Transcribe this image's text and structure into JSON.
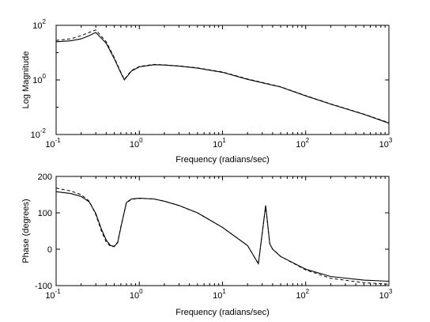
{
  "chart_data": [
    {
      "type": "line",
      "xscale": "log",
      "yscale": "log",
      "xlim": [
        0.1,
        1000
      ],
      "ylim": [
        0.01,
        100
      ],
      "xlabel": "Frequency (radians/sec)",
      "ylabel": "Log Magnitude",
      "grid": false,
      "x_ticks": [
        {
          "base": "10",
          "exp": "-1",
          "value": 0.1
        },
        {
          "base": "10",
          "exp": "0",
          "value": 1
        },
        {
          "base": "10",
          "exp": "1",
          "value": 10
        },
        {
          "base": "10",
          "exp": "2",
          "value": 100
        },
        {
          "base": "10",
          "exp": "3",
          "value": 1000
        }
      ],
      "y_ticks": [
        {
          "base": "10",
          "exp": "-2",
          "value": 0.01
        },
        {
          "base": "10",
          "exp": "0",
          "value": 1
        },
        {
          "base": "10",
          "exp": "2",
          "value": 100
        }
      ],
      "series": [
        {
          "style": "solid",
          "x": [
            0.1,
            0.15,
            0.2,
            0.25,
            0.3,
            0.4,
            0.5,
            0.6,
            0.66,
            0.8,
            1.0,
            1.5,
            2,
            3,
            5,
            10,
            20,
            50,
            100,
            200,
            500,
            1000
          ],
          "y": [
            25,
            27,
            32,
            42,
            55,
            22,
            6,
            1.8,
            1.0,
            2.1,
            3.0,
            3.6,
            3.5,
            3.2,
            2.7,
            1.9,
            1.05,
            0.55,
            0.26,
            0.13,
            0.055,
            0.026
          ]
        },
        {
          "style": "dashed",
          "x": [
            0.1,
            0.15,
            0.2,
            0.25,
            0.3,
            0.4,
            0.5,
            0.6,
            0.66,
            0.8,
            1.0,
            1.5,
            2,
            3,
            5,
            10,
            20,
            50,
            100,
            200,
            500,
            1000
          ],
          "y": [
            28,
            32,
            42,
            55,
            68,
            25,
            6.5,
            1.9,
            1.05,
            2.2,
            3.1,
            3.7,
            3.55,
            3.25,
            2.75,
            1.95,
            1.08,
            0.56,
            0.265,
            0.132,
            0.056,
            0.027
          ]
        }
      ]
    },
    {
      "type": "line",
      "xscale": "log",
      "xlim": [
        0.1,
        1000
      ],
      "ylim": [
        -100,
        200
      ],
      "xlabel": "Frequency (radians/sec)",
      "ylabel": "Phase (degrees)",
      "grid": false,
      "x_ticks": [
        {
          "base": "10",
          "exp": "-1",
          "value": 0.1
        },
        {
          "base": "10",
          "exp": "0",
          "value": 1
        },
        {
          "base": "10",
          "exp": "1",
          "value": 10
        },
        {
          "base": "10",
          "exp": "2",
          "value": 100
        },
        {
          "base": "10",
          "exp": "3",
          "value": 1000
        }
      ],
      "y_ticks": [
        {
          "label": "-100",
          "value": -100
        },
        {
          "label": "0",
          "value": 0
        },
        {
          "label": "100",
          "value": 100
        },
        {
          "label": "200",
          "value": 200
        }
      ],
      "series": [
        {
          "style": "solid",
          "x": [
            0.1,
            0.15,
            0.2,
            0.25,
            0.3,
            0.35,
            0.4,
            0.45,
            0.5,
            0.55,
            0.6,
            0.7,
            0.8,
            1.0,
            1.5,
            2,
            3,
            5,
            10,
            20,
            27,
            33,
            37,
            40,
            50,
            100,
            200,
            500,
            1000
          ],
          "y": [
            158,
            153,
            145,
            130,
            98,
            55,
            25,
            10,
            8,
            18,
            60,
            128,
            138,
            140,
            138,
            132,
            120,
            100,
            60,
            10,
            -40,
            120,
            15,
            0,
            -20,
            -55,
            -75,
            -85,
            -88
          ]
        },
        {
          "style": "dashed",
          "x": [
            0.1,
            0.15,
            0.2,
            0.25,
            0.3,
            0.35,
            0.4,
            0.45,
            0.5,
            0.55,
            0.6,
            0.7,
            0.8,
            1.0,
            1.5,
            2,
            3,
            5,
            10,
            20,
            27,
            33,
            37,
            40,
            50,
            100,
            200,
            500,
            1000
          ],
          "y": [
            168,
            160,
            150,
            132,
            95,
            50,
            20,
            8,
            7,
            20,
            62,
            127,
            137,
            140,
            138,
            132,
            120,
            100,
            60,
            10,
            -40,
            120,
            15,
            0,
            -20,
            -57,
            -80,
            -92,
            -96
          ]
        }
      ]
    }
  ]
}
